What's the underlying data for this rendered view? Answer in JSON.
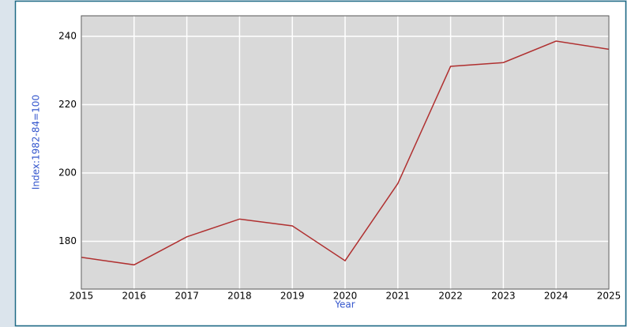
{
  "chart_data": {
    "type": "line",
    "x": [
      2015,
      2016,
      2017,
      2018,
      2019,
      2020,
      2021,
      2022,
      2023,
      2024,
      2025
    ],
    "series": [
      {
        "name": "Index",
        "color": "#b03030",
        "values": [
          175.3,
          173.1,
          181.3,
          186.5,
          184.5,
          174.3,
          196.9,
          231.2,
          232.3,
          238.6,
          236.2
        ]
      }
    ],
    "xlim": [
      2015,
      2025
    ],
    "xticks": [
      2015,
      2016,
      2017,
      2018,
      2019,
      2020,
      2021,
      2022,
      2023,
      2024,
      2025
    ],
    "ylim": [
      166,
      246
    ],
    "yticks": [
      180,
      200,
      220,
      240
    ],
    "xlabel": "Year",
    "ylabel": "Index:1982-84=100",
    "grid": true
  }
}
